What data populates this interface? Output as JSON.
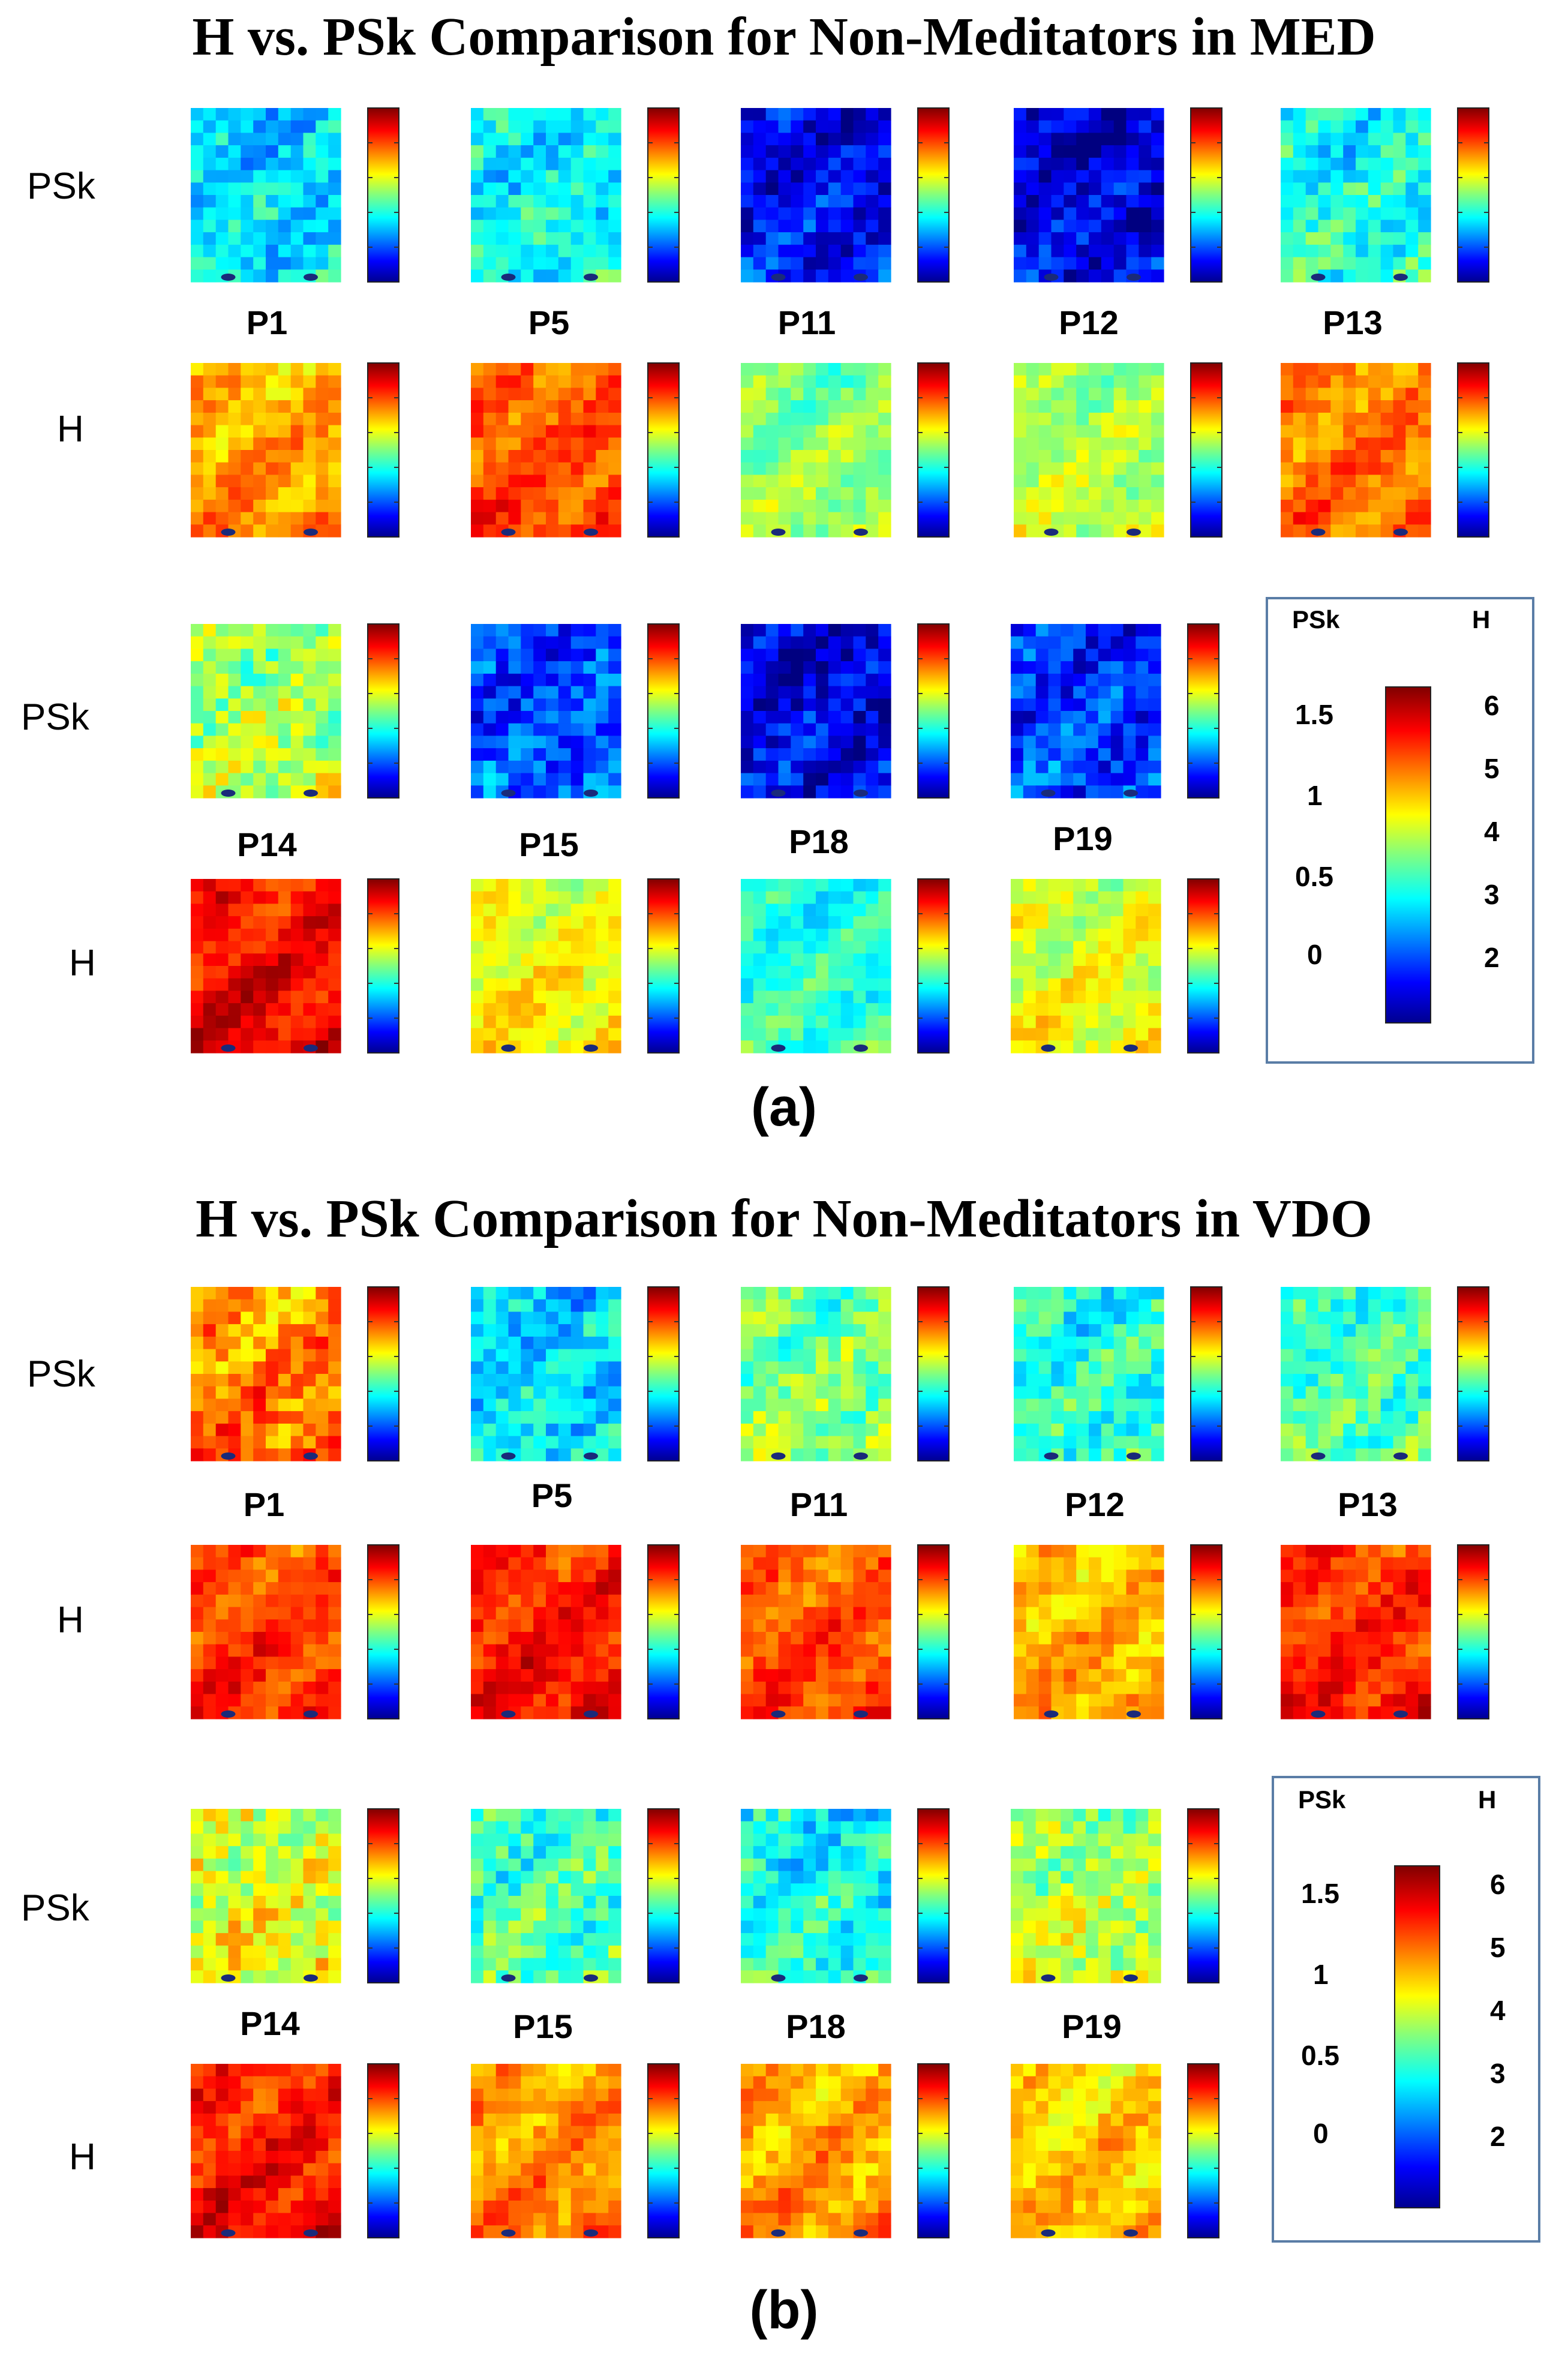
{
  "colormap": "jet",
  "panels": [
    {
      "id": "a",
      "title": "H vs. PSk Comparison for Non-Meditators in MED",
      "caption": "(a)",
      "row_labels": [
        "PSk",
        "H",
        "PSk",
        "H"
      ],
      "participants_row1": [
        "P1",
        "P5",
        "P11",
        "P12",
        "P13"
      ],
      "participants_row2": [
        "P14",
        "P15",
        "P18",
        "P19"
      ],
      "psk_level_row1": [
        0.35,
        0.38,
        0.13,
        0.1,
        0.4
      ],
      "h_level_row1": [
        0.72,
        0.8,
        0.52,
        0.55,
        0.76
      ],
      "psk_level_row2": [
        0.55,
        0.2,
        0.1,
        0.18
      ],
      "h_level_row2": [
        0.88,
        0.62,
        0.42,
        0.6
      ],
      "legend": {
        "psk_header": "PSk",
        "h_header": "H",
        "psk_ticks": [
          "1.5",
          "1",
          "0.5",
          "0"
        ],
        "h_ticks": [
          "6",
          "5",
          "4",
          "3",
          "2"
        ]
      }
    },
    {
      "id": "b",
      "title": "H vs. PSk Comparison for Non-Meditators in VDO",
      "caption": "(b)",
      "row_labels": [
        "PSk",
        "H",
        "PSk",
        "H"
      ],
      "participants_row1": [
        "P1",
        "P5",
        "P11",
        "P12",
        "P13"
      ],
      "participants_row2": [
        "P14",
        "P15",
        "P18",
        "P19"
      ],
      "psk_level_row1": [
        0.75,
        0.35,
        0.5,
        0.42,
        0.45
      ],
      "h_level_row1": [
        0.82,
        0.86,
        0.8,
        0.7,
        0.84
      ],
      "psk_level_row2": [
        0.6,
        0.45,
        0.4,
        0.55
      ],
      "h_level_row2": [
        0.86,
        0.74,
        0.72,
        0.68
      ],
      "legend": {
        "psk_header": "PSk",
        "h_header": "H",
        "psk_ticks": [
          "1.5",
          "1",
          "0.5",
          "0"
        ],
        "h_ticks": [
          "6",
          "5",
          "4",
          "3",
          "2"
        ]
      }
    }
  ]
}
